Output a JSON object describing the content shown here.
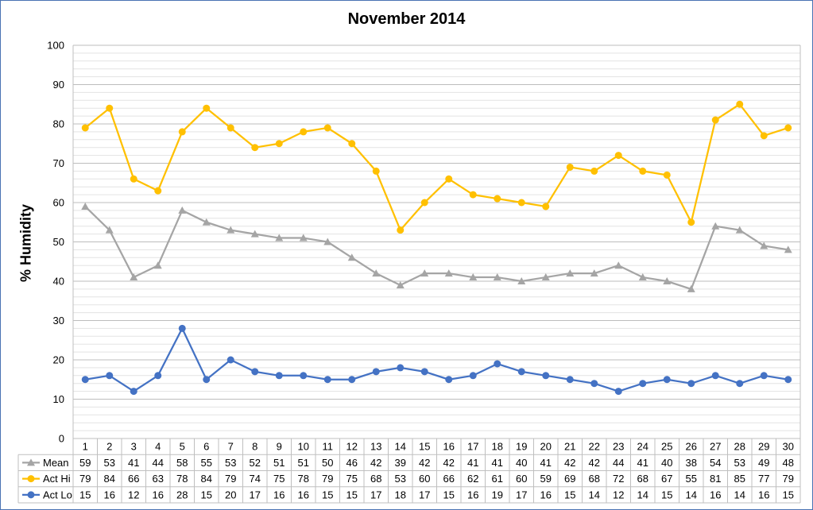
{
  "chart_data": {
    "type": "line",
    "title": "November 2014",
    "xlabel": "",
    "ylabel": "% Humidity",
    "ylim": [
      0,
      100
    ],
    "y_tick_step": 10,
    "minor_grid_step": 2,
    "grid": true,
    "legend": "data-table",
    "categories": [
      "1",
      "2",
      "3",
      "4",
      "5",
      "6",
      "7",
      "8",
      "9",
      "10",
      "11",
      "12",
      "13",
      "14",
      "15",
      "16",
      "17",
      "18",
      "19",
      "20",
      "21",
      "22",
      "23",
      "24",
      "25",
      "26",
      "27",
      "28",
      "29",
      "30"
    ],
    "series": [
      {
        "name": "Mean",
        "color": "#a5a5a5",
        "marker": "triangle",
        "values": [
          59,
          53,
          41,
          44,
          58,
          55,
          53,
          52,
          51,
          51,
          50,
          46,
          42,
          39,
          42,
          42,
          41,
          41,
          40,
          41,
          42,
          42,
          44,
          41,
          40,
          38,
          54,
          53,
          49,
          48
        ]
      },
      {
        "name": "Act Hi",
        "color": "#ffc000",
        "marker": "circle",
        "values": [
          79,
          84,
          66,
          63,
          78,
          84,
          79,
          74,
          75,
          78,
          79,
          75,
          68,
          53,
          60,
          66,
          62,
          61,
          60,
          59,
          69,
          68,
          72,
          68,
          67,
          55,
          81,
          85,
          77,
          79
        ]
      },
      {
        "name": "Act Lo",
        "color": "#4472c4",
        "marker": "circle",
        "values": [
          15,
          16,
          12,
          16,
          28,
          15,
          20,
          17,
          16,
          16,
          15,
          15,
          17,
          18,
          17,
          15,
          16,
          19,
          17,
          16,
          15,
          14,
          12,
          14,
          15,
          14,
          16,
          14,
          16,
          15
        ]
      }
    ]
  }
}
